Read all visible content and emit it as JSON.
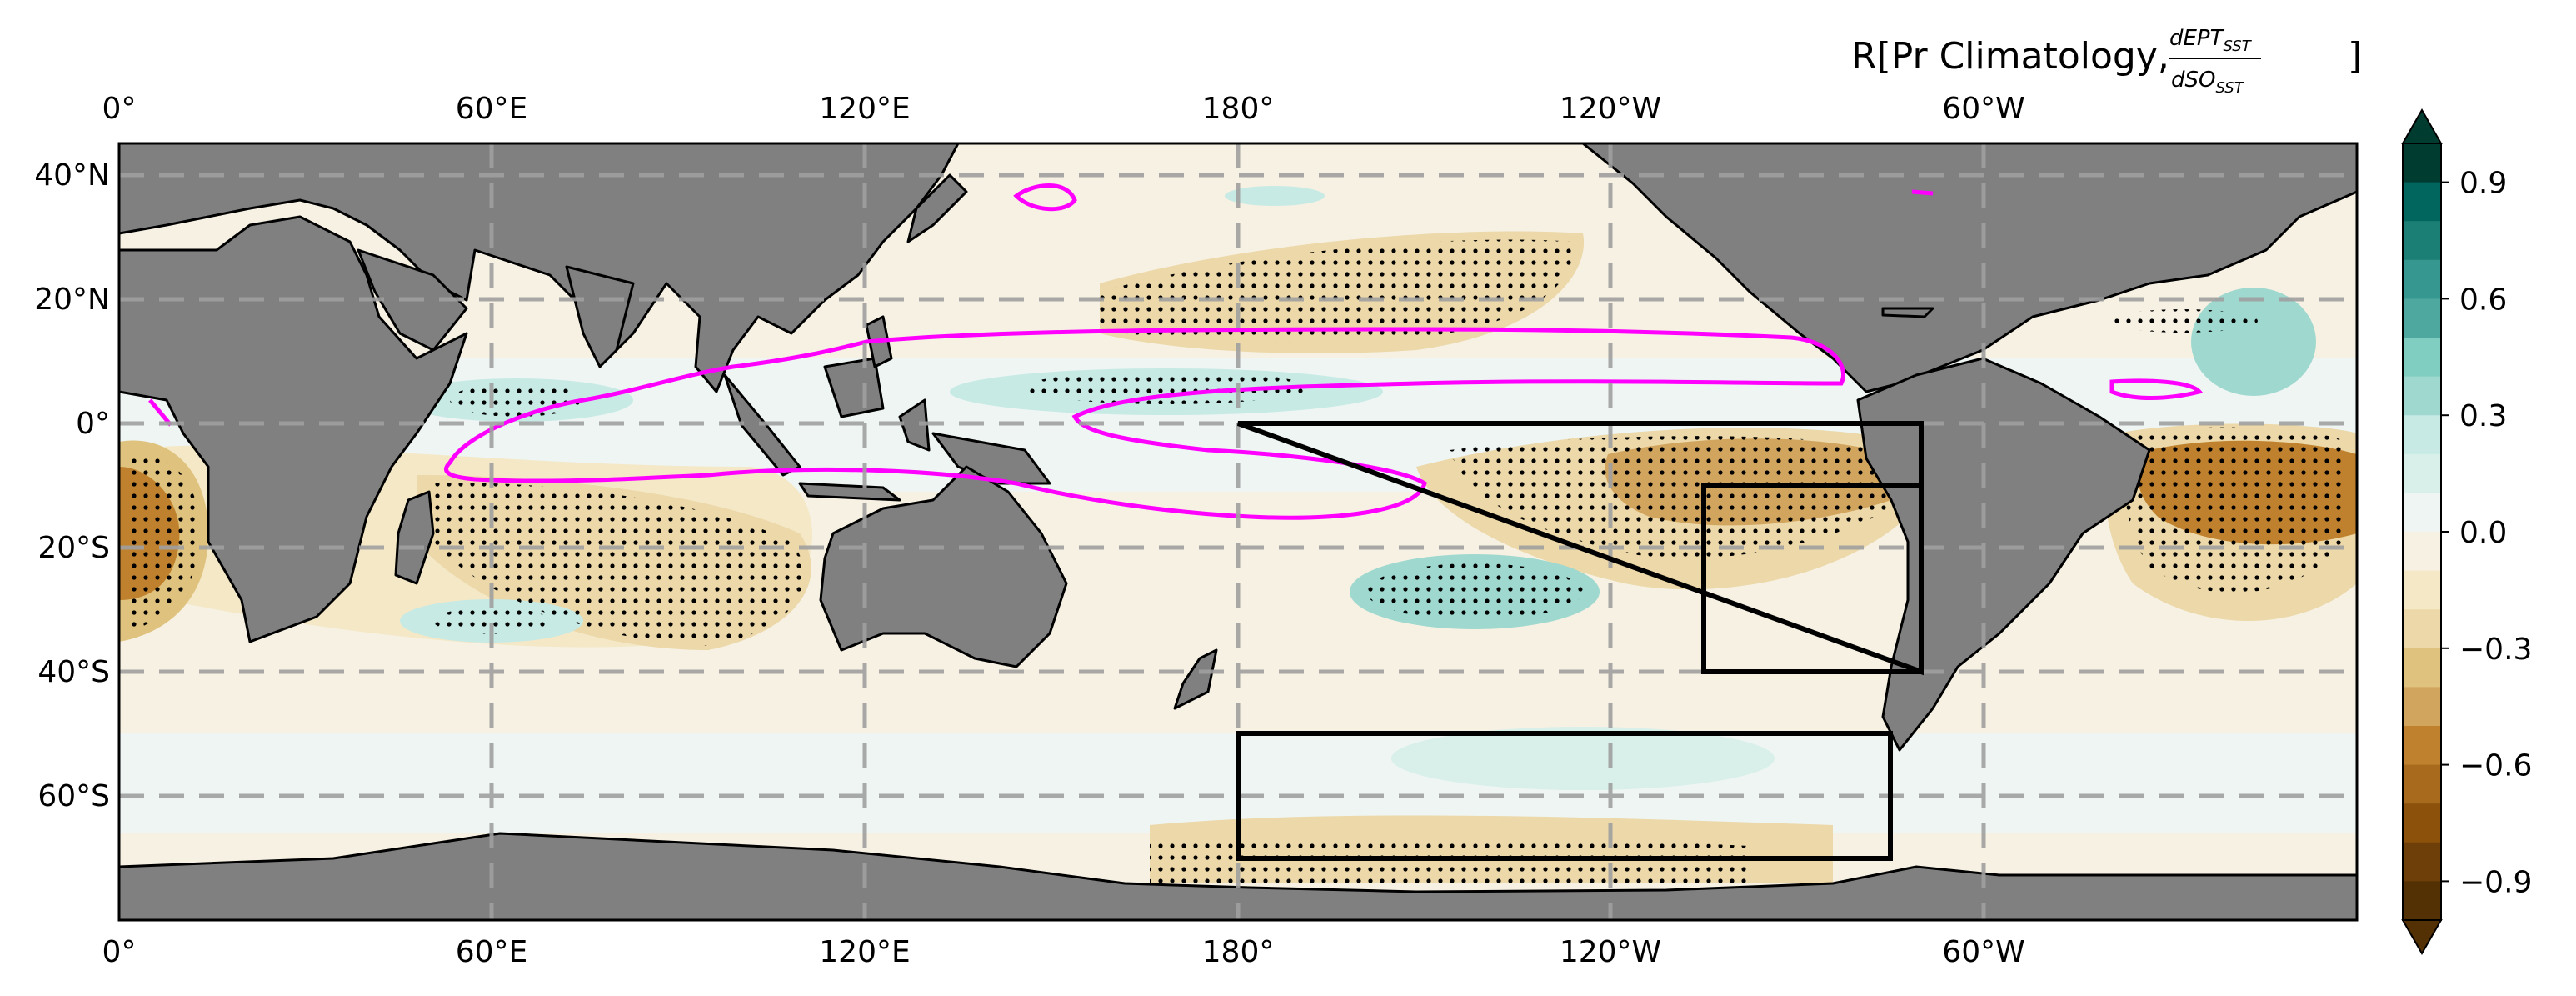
{
  "title": {
    "prefix": "R[Pr Climatology, ",
    "numerator": "dEPT",
    "numerator_sub": "SST",
    "denominator": "dSO",
    "denominator_sub": "SST",
    "suffix": "]"
  },
  "lon_ticks": [
    "0°",
    "60°E",
    "120°E",
    "180°",
    "120°W",
    "60°W"
  ],
  "lat_ticks": [
    "40°N",
    "20°N",
    "0°",
    "20°S",
    "40°S",
    "60°S"
  ],
  "colorbar": {
    "ticks": [
      "0.9",
      "0.6",
      "0.3",
      "0.0",
      "−0.3",
      "−0.6",
      "−0.9"
    ],
    "tick_values": [
      0.9,
      0.6,
      0.3,
      0.0,
      -0.3,
      -0.6,
      -0.9
    ],
    "range": [
      -1.0,
      1.0
    ],
    "levels": 20,
    "extend": "both",
    "colors": [
      "#543005",
      "#6f3f09",
      "#8c510a",
      "#a86b1d",
      "#bf812d",
      "#d2a55f",
      "#dfc27d",
      "#ecd8a8",
      "#f4e8c7",
      "#f6f1e3",
      "#eef5f3",
      "#d8efea",
      "#c7eae5",
      "#9ed8cf",
      "#80cdc1",
      "#4fa89f",
      "#35978f",
      "#1b7f76",
      "#01665e",
      "#003c30"
    ]
  },
  "map": {
    "projection": "PlateCarree",
    "central_longitude": 180,
    "lon_range": [
      0,
      360
    ],
    "lat_range": [
      -80,
      45
    ],
    "land_color": "#808080",
    "gridlines": "dashed",
    "contour_color": "#ff00ff",
    "stippling": "significant"
  },
  "boxes": [
    {
      "name": "Eastern Pacific triangle",
      "lon": [
        180,
        290
      ],
      "lat": [
        -40,
        0
      ]
    },
    {
      "name": "Southeast Pacific",
      "lon": [
        255,
        290
      ],
      "lat": [
        -40,
        -10
      ]
    },
    {
      "name": "Southern Ocean",
      "lon": [
        180,
        285
      ],
      "lat": [
        -70,
        -50
      ]
    }
  ]
}
